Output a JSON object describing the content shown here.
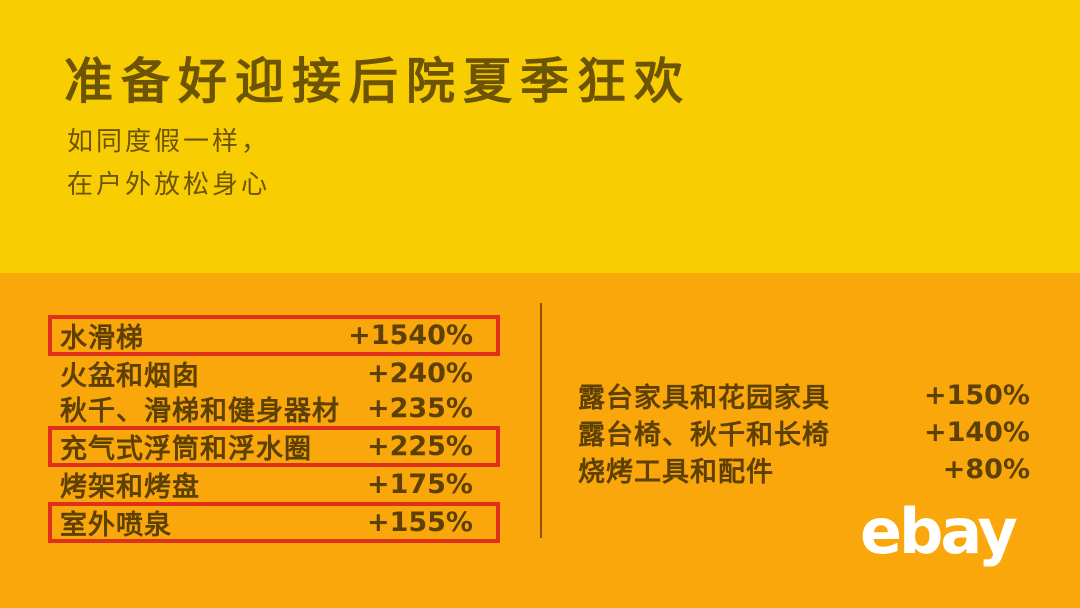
{
  "theme": {
    "bg_top": "#F8CE02",
    "bg_bottom": "#F9A70B",
    "text_top": "#6D5404",
    "text_bottom": "#5E4102",
    "highlight_red": "#E0301C",
    "logo_white": "#FFFFFF"
  },
  "header": {
    "title": "准备好迎接后院夏季狂欢",
    "subtitle_line1": "如同度假一样，",
    "subtitle_line2": "在户外放松身心"
  },
  "chart_data": {
    "type": "table",
    "title": "准备好迎接后院夏季狂欢",
    "subtitle": "如同度假一样，在户外放松身心",
    "columns": [
      "category",
      "growth"
    ],
    "left_column": [
      {
        "category": "水滑梯",
        "value": "+1540%",
        "growth_percent": 1540,
        "highlighted": true
      },
      {
        "category": "火盆和烟囱",
        "value": "+240%",
        "growth_percent": 240,
        "highlighted": false
      },
      {
        "category": "秋千、滑梯和健身器材",
        "value": "+235%",
        "growth_percent": 235,
        "highlighted": false
      },
      {
        "category": "充气式浮筒和浮水圈",
        "value": "+225%",
        "growth_percent": 225,
        "highlighted": true
      },
      {
        "category": "烤架和烤盘",
        "value": "+175%",
        "growth_percent": 175,
        "highlighted": false
      },
      {
        "category": "室外喷泉",
        "value": "+155%",
        "growth_percent": 155,
        "highlighted": true
      }
    ],
    "right_column": [
      {
        "category": "露台家具和花园家具",
        "value": "+150%",
        "growth_percent": 150,
        "highlighted": false
      },
      {
        "category": "露台椅、秋千和长椅",
        "value": "+140%",
        "growth_percent": 140,
        "highlighted": false
      },
      {
        "category": "烧烤工具和配件",
        "value": "+80%",
        "growth_percent": 80,
        "highlighted": false
      }
    ]
  },
  "branding": {
    "logo_text": "ebay"
  }
}
